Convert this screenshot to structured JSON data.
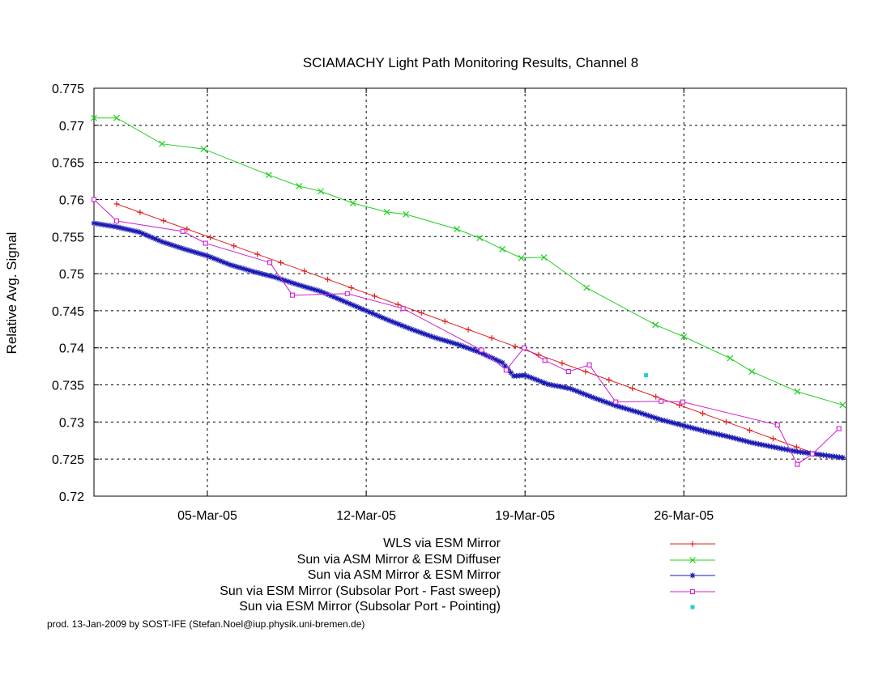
{
  "chart_data": {
    "type": "line",
    "title": "SCIAMACHY Light Path Monitoring Results, Channel 8",
    "xlabel": "",
    "ylabel": "Relative Avg. Signal",
    "xlim": [
      "2005-02-28T00:00",
      "2005-04-02T04:00"
    ],
    "ylim": [
      0.72,
      0.775
    ],
    "x_ticks": [
      "2005-03-05",
      "2005-03-12",
      "2005-03-19",
      "2005-03-26"
    ],
    "x_tick_labels": [
      "05-Mar-05",
      "12-Mar-05",
      "19-Mar-05",
      "26-Mar-05"
    ],
    "y_ticks": [
      0.72,
      0.725,
      0.73,
      0.735,
      0.74,
      0.745,
      0.75,
      0.755,
      0.76,
      0.765,
      0.77,
      0.775
    ],
    "y_tick_labels": [
      "0.72",
      "0.725",
      "0.73",
      "0.735",
      "0.74",
      "0.745",
      "0.75",
      "0.755",
      "0.76",
      "0.765",
      "0.77",
      "0.775"
    ],
    "grid": true,
    "legend_position": "bottom",
    "series": [
      {
        "name": "WLS via ESM Mirror",
        "color": "#e02020",
        "marker": "plus",
        "line": true,
        "points": [
          {
            "x": "2005-03-01T00:00",
            "y": 0.7594
          },
          {
            "x": "2005-04-01T00:00",
            "y": 0.7255
          }
        ]
      },
      {
        "name": "Sun via ASM Mirror & ESM Diffuser",
        "color": "#20d020",
        "marker": "x",
        "line": true,
        "points": [
          {
            "x": "2005-02-28T00:00",
            "y": 0.771
          },
          {
            "x": "2005-03-01T00:00",
            "y": 0.771
          },
          {
            "x": "2005-03-03T00:00",
            "y": 0.7675
          },
          {
            "x": "2005-03-04T20:00",
            "y": 0.7668
          },
          {
            "x": "2005-03-07T17:00",
            "y": 0.7633
          },
          {
            "x": "2005-03-09T01:00",
            "y": 0.7618
          },
          {
            "x": "2005-03-10T00:00",
            "y": 0.7611
          },
          {
            "x": "2005-03-11T10:00",
            "y": 0.7595
          },
          {
            "x": "2005-03-12T22:00",
            "y": 0.7583
          },
          {
            "x": "2005-03-13T18:00",
            "y": 0.758
          },
          {
            "x": "2005-03-16T00:00",
            "y": 0.756
          },
          {
            "x": "2005-03-17T00:00",
            "y": 0.7548
          },
          {
            "x": "2005-03-18T00:00",
            "y": 0.7533
          },
          {
            "x": "2005-03-18T20:00",
            "y": 0.7521
          },
          {
            "x": "2005-03-19T20:00",
            "y": 0.7522
          },
          {
            "x": "2005-03-21T17:00",
            "y": 0.7481
          },
          {
            "x": "2005-03-24T18:00",
            "y": 0.7431
          },
          {
            "x": "2005-03-26T00:00",
            "y": 0.7415
          },
          {
            "x": "2005-03-28T01:00",
            "y": 0.7386
          },
          {
            "x": "2005-03-29T00:00",
            "y": 0.7368
          },
          {
            "x": "2005-03-31T00:00",
            "y": 0.7341
          },
          {
            "x": "2005-04-02T00:00",
            "y": 0.7323
          }
        ]
      },
      {
        "name": "Sun via ASM Mirror & ESM Mirror",
        "color": "#1a1ab4",
        "marker": "star",
        "line": true,
        "points": [
          {
            "x": "2005-02-28T00:00",
            "y": 0.7568
          },
          {
            "x": "2005-03-01T00:00",
            "y": 0.7563
          },
          {
            "x": "2005-03-02T00:00",
            "y": 0.7556
          },
          {
            "x": "2005-03-03T00:00",
            "y": 0.7543
          },
          {
            "x": "2005-03-04T00:00",
            "y": 0.7533
          },
          {
            "x": "2005-03-05T00:00",
            "y": 0.7524
          },
          {
            "x": "2005-03-06T00:00",
            "y": 0.7512
          },
          {
            "x": "2005-03-07T00:00",
            "y": 0.7503
          },
          {
            "x": "2005-03-08T00:00",
            "y": 0.7495
          },
          {
            "x": "2005-03-09T00:00",
            "y": 0.7485
          },
          {
            "x": "2005-03-10T00:00",
            "y": 0.7476
          },
          {
            "x": "2005-03-11T00:00",
            "y": 0.7463
          },
          {
            "x": "2005-03-12T00:00",
            "y": 0.745
          },
          {
            "x": "2005-03-13T00:00",
            "y": 0.7437
          },
          {
            "x": "2005-03-14T00:00",
            "y": 0.7425
          },
          {
            "x": "2005-03-15T00:00",
            "y": 0.7414
          },
          {
            "x": "2005-03-16T00:00",
            "y": 0.7405
          },
          {
            "x": "2005-03-17T00:00",
            "y": 0.7394
          },
          {
            "x": "2005-03-18T00:00",
            "y": 0.738
          },
          {
            "x": "2005-03-18T12:00",
            "y": 0.7362
          },
          {
            "x": "2005-03-19T00:00",
            "y": 0.7363
          },
          {
            "x": "2005-03-20T00:00",
            "y": 0.7351
          },
          {
            "x": "2005-03-21T00:00",
            "y": 0.7345
          },
          {
            "x": "2005-03-22T00:00",
            "y": 0.7333
          },
          {
            "x": "2005-03-23T00:00",
            "y": 0.7322
          },
          {
            "x": "2005-03-24T00:00",
            "y": 0.7313
          },
          {
            "x": "2005-03-25T00:00",
            "y": 0.7303
          },
          {
            "x": "2005-03-26T00:00",
            "y": 0.7295
          },
          {
            "x": "2005-03-27T00:00",
            "y": 0.7287
          },
          {
            "x": "2005-03-28T00:00",
            "y": 0.728
          },
          {
            "x": "2005-03-29T00:00",
            "y": 0.7272
          },
          {
            "x": "2005-03-30T00:00",
            "y": 0.7266
          },
          {
            "x": "2005-03-31T00:00",
            "y": 0.726
          },
          {
            "x": "2005-04-01T00:00",
            "y": 0.7256
          },
          {
            "x": "2005-04-02T00:00",
            "y": 0.7252
          }
        ]
      },
      {
        "name": "Sun via ESM Mirror (Subsolar Port - Fast sweep)",
        "color": "#d020d0",
        "marker": "square",
        "line": true,
        "points": [
          {
            "x": "2005-02-28T00:00",
            "y": 0.76
          },
          {
            "x": "2005-03-01T00:00",
            "y": 0.7571
          },
          {
            "x": "2005-03-03T22:00",
            "y": 0.7557
          },
          {
            "x": "2005-03-04T22:00",
            "y": 0.7541
          },
          {
            "x": "2005-03-07T18:00",
            "y": 0.7515
          },
          {
            "x": "2005-03-08T18:00",
            "y": 0.7471
          },
          {
            "x": "2005-03-11T04:00",
            "y": 0.7473
          },
          {
            "x": "2005-03-13T15:00",
            "y": 0.7453
          },
          {
            "x": "2005-03-17T02:00",
            "y": 0.7397
          },
          {
            "x": "2005-03-18T04:00",
            "y": 0.737
          },
          {
            "x": "2005-03-18T23:00",
            "y": 0.74
          },
          {
            "x": "2005-03-19T21:00",
            "y": 0.7383
          },
          {
            "x": "2005-03-20T22:00",
            "y": 0.7368
          },
          {
            "x": "2005-03-21T20:00",
            "y": 0.7377
          },
          {
            "x": "2005-03-23T00:00",
            "y": 0.7327
          },
          {
            "x": "2005-03-25T00:00",
            "y": 0.7328
          },
          {
            "x": "2005-03-25T23:00",
            "y": 0.7327
          },
          {
            "x": "2005-03-30T03:00",
            "y": 0.7296
          },
          {
            "x": "2005-03-31T00:00",
            "y": 0.7243
          },
          {
            "x": "2005-03-31T16:00",
            "y": 0.7257
          },
          {
            "x": "2005-04-01T20:00",
            "y": 0.7291
          }
        ]
      },
      {
        "name": "Sun via ESM Mirror (Subsolar Port - Pointing)",
        "color": "#20d0d0",
        "marker": "dot",
        "line": false,
        "points": [
          {
            "x": "2005-03-24T08:00",
            "y": 0.7363
          }
        ]
      }
    ]
  },
  "footer": "prod. 13-Jan-2009 by SOST-IFE (Stefan.Noel@iup.physik.uni-bremen.de)"
}
